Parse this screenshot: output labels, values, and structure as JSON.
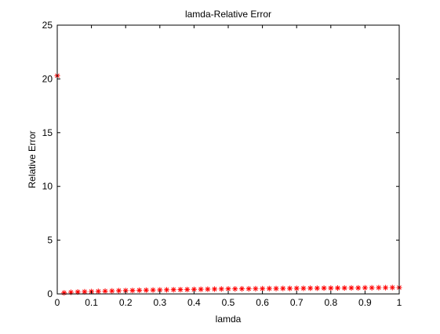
{
  "chart_data": {
    "type": "scatter",
    "title": "lamda-Relative Error",
    "xlabel": "lamda",
    "ylabel": "Relative Error",
    "xlim": [
      0,
      1
    ],
    "ylim": [
      0,
      25
    ],
    "xticks": [
      "0",
      "0.1",
      "0.2",
      "0.3",
      "0.4",
      "0.5",
      "0.6",
      "0.7",
      "0.8",
      "0.9",
      "1"
    ],
    "yticks": [
      "0",
      "5",
      "10",
      "15",
      "20",
      "25"
    ],
    "grid": false,
    "legend": "none",
    "marker": "*",
    "marker_color": "#ff0000",
    "series": [
      {
        "x": [
          0.0,
          0.02,
          0.04,
          0.06,
          0.08,
          0.1,
          0.12,
          0.14,
          0.16,
          0.18,
          0.2,
          0.22,
          0.24,
          0.26,
          0.28,
          0.3,
          0.32,
          0.34,
          0.36,
          0.38,
          0.4,
          0.42,
          0.44,
          0.46,
          0.48,
          0.5,
          0.52,
          0.54,
          0.56,
          0.58,
          0.6,
          0.62,
          0.64,
          0.66,
          0.68,
          0.7,
          0.72,
          0.74,
          0.76,
          0.78,
          0.8,
          0.82,
          0.84,
          0.86,
          0.88,
          0.9,
          0.92,
          0.94,
          0.96,
          0.98,
          1.0
        ],
        "y": [
          20.3,
          0.1,
          0.15,
          0.18,
          0.2,
          0.22,
          0.24,
          0.26,
          0.28,
          0.3,
          0.31,
          0.32,
          0.34,
          0.35,
          0.36,
          0.37,
          0.38,
          0.39,
          0.4,
          0.41,
          0.42,
          0.43,
          0.44,
          0.45,
          0.46,
          0.47,
          0.47,
          0.48,
          0.48,
          0.49,
          0.49,
          0.5,
          0.5,
          0.51,
          0.51,
          0.52,
          0.52,
          0.53,
          0.53,
          0.54,
          0.54,
          0.55,
          0.55,
          0.56,
          0.56,
          0.57,
          0.57,
          0.58,
          0.58,
          0.59,
          0.59
        ]
      }
    ]
  }
}
